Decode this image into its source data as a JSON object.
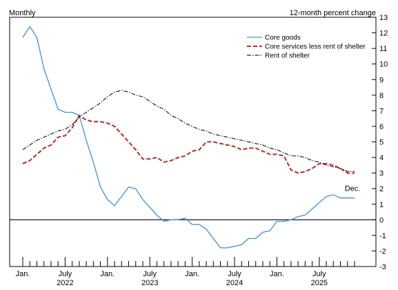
{
  "chart_data": {
    "type": "line",
    "left_header": "Monthly",
    "right_header": "12-month percent change",
    "y_axis_side": "right",
    "ylim": [
      -3,
      13
    ],
    "y_ticks": [
      "-3",
      "-2",
      "-1",
      "0",
      "1",
      "2",
      "3",
      "4",
      "5",
      "6",
      "7",
      "8",
      "9",
      "10",
      "11",
      "12",
      "13"
    ],
    "x_start": "2022-01",
    "x_end": "2025-12",
    "x_tick_labels": [
      {
        "month": "2022-01",
        "label": "Jan."
      },
      {
        "month": "2022-07",
        "label": "July"
      },
      {
        "month": "2023-01",
        "label": "Jan."
      },
      {
        "month": "2023-07",
        "label": "July"
      },
      {
        "month": "2024-01",
        "label": "Jan."
      },
      {
        "month": "2024-07",
        "label": "July"
      },
      {
        "month": "2025-01",
        "label": "Jan."
      },
      {
        "month": "2025-07",
        "label": "July"
      }
    ],
    "year_labels": [
      {
        "month": "2022-07",
        "label": "2022"
      },
      {
        "month": "2023-07",
        "label": "2023"
      },
      {
        "month": "2024-07",
        "label": "2024"
      },
      {
        "month": "2025-07",
        "label": "2025"
      }
    ],
    "zero_line": true,
    "legend_position": "top-right",
    "annotation": {
      "text": "Dec.",
      "series": 0,
      "month": "2025-12"
    },
    "series": [
      {
        "name": "Core goods",
        "color": "#3d8fe0",
        "style": "solid",
        "values": [
          11.7,
          12.4,
          11.7,
          9.7,
          8.4,
          7.1,
          6.9,
          6.9,
          6.7,
          5.1,
          3.7,
          2.1,
          1.3,
          0.9,
          1.5,
          2.1,
          2.0,
          1.3,
          0.8,
          0.3,
          -0.1,
          0.0,
          0.0,
          0.1,
          -0.3,
          -0.3,
          -0.6,
          -1.2,
          -1.8,
          -1.8,
          -1.7,
          -1.6,
          -1.2,
          -1.2,
          -0.8,
          -0.7,
          -0.1,
          -0.1,
          0.0,
          0.2,
          0.3,
          0.7,
          1.1,
          1.5,
          1.6,
          1.4,
          1.4,
          1.4
        ]
      },
      {
        "name": "Core services less rent of shelter",
        "color": "#c0281f",
        "style": "dashed",
        "values": [
          3.6,
          3.8,
          4.2,
          4.6,
          4.8,
          5.3,
          5.4,
          5.9,
          6.7,
          6.4,
          6.3,
          6.3,
          6.2,
          6.0,
          5.5,
          5.0,
          4.5,
          3.9,
          3.9,
          4.0,
          3.7,
          3.8,
          4.0,
          4.1,
          4.4,
          4.5,
          5.0,
          5.0,
          4.9,
          4.8,
          4.7,
          4.5,
          4.6,
          4.6,
          4.4,
          4.2,
          4.2,
          4.1,
          3.2,
          3.0,
          3.1,
          3.3,
          3.6,
          3.6,
          3.5,
          3.3,
          3.0,
          3.0
        ]
      },
      {
        "name": "Rent of shelter",
        "color": "#222222",
        "style": "dashdot",
        "values": [
          4.5,
          4.8,
          5.1,
          5.3,
          5.5,
          5.7,
          5.8,
          6.1,
          6.6,
          6.9,
          7.2,
          7.5,
          7.9,
          8.2,
          8.3,
          8.2,
          8.0,
          7.9,
          7.6,
          7.3,
          7.1,
          6.7,
          6.5,
          6.2,
          6.0,
          5.8,
          5.7,
          5.5,
          5.4,
          5.3,
          5.2,
          5.1,
          5.0,
          4.9,
          4.8,
          4.6,
          4.5,
          4.3,
          4.1,
          4.1,
          4.0,
          3.8,
          3.7,
          3.5,
          3.4,
          3.3,
          3.1,
          3.1
        ]
      }
    ]
  }
}
